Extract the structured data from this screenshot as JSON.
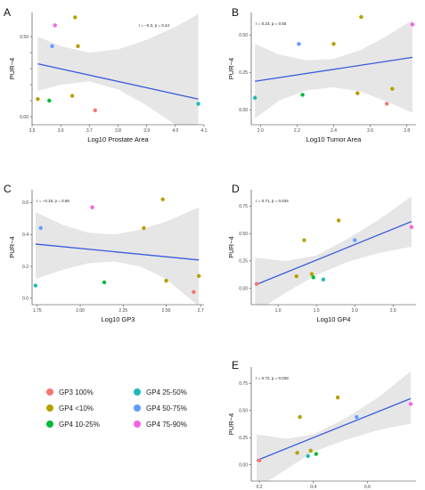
{
  "legend": {
    "items": [
      {
        "label": "GP3 100%",
        "color": "#f8766d"
      },
      {
        "label": "GP4 25-50%",
        "color": "#1fb9b9"
      },
      {
        "label": "GP4 <10%",
        "color": "#b79f00"
      },
      {
        "label": "GP4 50-75%",
        "color": "#619cff"
      },
      {
        "label": "GP4 10-25%",
        "color": "#00ba38"
      },
      {
        "label": "GP4 75-90%",
        "color": "#f564e3"
      }
    ]
  },
  "chart_data": [
    {
      "panel": "A",
      "type": "scatter",
      "xlabel": "Log10 Prostate Area",
      "ylabel": "PUR−4",
      "annotation": "r = −0.3, p = 0.44",
      "xlim": [
        3.5,
        4.1
      ],
      "ylim": [
        -0.05,
        0.65
      ],
      "xticks": [
        3.5,
        3.6,
        3.7,
        3.8,
        3.9,
        4.0,
        4.1
      ],
      "xtick_labels": [
        "3.5",
        "3.6",
        "3.7",
        "3.8",
        "3.9",
        "4.0",
        "4.1"
      ],
      "yticks": [
        0.0,
        0.1,
        0.2,
        0.3,
        0.4,
        0.5
      ],
      "ytick_labels": [
        "0.00",
        "",
        "",
        "",
        "",
        "0.50"
      ],
      "fit": {
        "x": [
          3.52,
          4.08
        ],
        "y": [
          0.33,
          0.11
        ]
      },
      "band_upper": [
        {
          "x": 3.52,
          "y": 0.5
        },
        {
          "x": 3.6,
          "y": 0.44
        },
        {
          "x": 3.7,
          "y": 0.4
        },
        {
          "x": 3.8,
          "y": 0.42
        },
        {
          "x": 3.9,
          "y": 0.48
        },
        {
          "x": 4.0,
          "y": 0.56
        },
        {
          "x": 4.08,
          "y": 0.64
        }
      ],
      "band_lower": [
        {
          "x": 3.52,
          "y": 0.16
        },
        {
          "x": 3.6,
          "y": 0.2
        },
        {
          "x": 3.7,
          "y": 0.22
        },
        {
          "x": 3.8,
          "y": 0.17
        },
        {
          "x": 3.9,
          "y": 0.07
        },
        {
          "x": 4.0,
          "y": -0.05
        },
        {
          "x": 4.08,
          "y": -0.14
        }
      ],
      "points": [
        {
          "x": 3.52,
          "y": 0.11,
          "color": "#b79f00"
        },
        {
          "x": 3.56,
          "y": 0.1,
          "color": "#00ba38"
        },
        {
          "x": 3.57,
          "y": 0.44,
          "color": "#619cff"
        },
        {
          "x": 3.58,
          "y": 0.57,
          "color": "#f564e3"
        },
        {
          "x": 3.64,
          "y": 0.13,
          "color": "#b79f00"
        },
        {
          "x": 3.65,
          "y": 0.62,
          "color": "#b79f00"
        },
        {
          "x": 3.66,
          "y": 0.44,
          "color": "#b79f00"
        },
        {
          "x": 3.72,
          "y": 0.04,
          "color": "#f8766d"
        },
        {
          "x": 4.08,
          "y": 0.08,
          "color": "#1fb9b9"
        }
      ]
    },
    {
      "panel": "B",
      "type": "scatter",
      "xlabel": "Log10 Tumor Area",
      "ylabel": "PUR−4",
      "annotation": "r = 0.23, p = 0.55",
      "xlim": [
        1.95,
        2.85
      ],
      "ylim": [
        -0.1,
        0.65
      ],
      "xticks": [
        2.0,
        2.2,
        2.4,
        2.6,
        2.8
      ],
      "xtick_labels": [
        "2.0",
        "2.2",
        "2.4",
        "2.6",
        "2.8"
      ],
      "yticks": [
        0.0,
        0.25,
        0.5
      ],
      "ytick_labels": [
        "0.00",
        "0.25",
        "0.50"
      ],
      "fit": {
        "x": [
          1.97,
          2.83
        ],
        "y": [
          0.19,
          0.35
        ]
      },
      "band_upper": [
        {
          "x": 1.97,
          "y": 0.44
        },
        {
          "x": 2.1,
          "y": 0.37
        },
        {
          "x": 2.25,
          "y": 0.33
        },
        {
          "x": 2.4,
          "y": 0.34
        },
        {
          "x": 2.55,
          "y": 0.4
        },
        {
          "x": 2.7,
          "y": 0.5
        },
        {
          "x": 2.83,
          "y": 0.6
        }
      ],
      "band_lower": [
        {
          "x": 1.97,
          "y": -0.06
        },
        {
          "x": 2.1,
          "y": 0.06
        },
        {
          "x": 2.25,
          "y": 0.13
        },
        {
          "x": 2.4,
          "y": 0.15
        },
        {
          "x": 2.55,
          "y": 0.12
        },
        {
          "x": 2.7,
          "y": 0.05
        },
        {
          "x": 2.83,
          "y": -0.02
        }
      ],
      "points": [
        {
          "x": 1.97,
          "y": 0.08,
          "color": "#1fb9b9"
        },
        {
          "x": 2.21,
          "y": 0.44,
          "color": "#619cff"
        },
        {
          "x": 2.23,
          "y": 0.1,
          "color": "#00ba38"
        },
        {
          "x": 2.4,
          "y": 0.44,
          "color": "#b79f00"
        },
        {
          "x": 2.53,
          "y": 0.11,
          "color": "#b79f00"
        },
        {
          "x": 2.55,
          "y": 0.62,
          "color": "#b79f00"
        },
        {
          "x": 2.69,
          "y": 0.04,
          "color": "#f8766d"
        },
        {
          "x": 2.72,
          "y": 0.14,
          "color": "#b79f00"
        },
        {
          "x": 2.83,
          "y": 0.57,
          "color": "#f564e3"
        }
      ]
    },
    {
      "panel": "C",
      "type": "scatter",
      "xlabel": "Log10 GP3",
      "ylabel": "PUR−4",
      "annotation": "r = −0.18, p = 0.65",
      "xlim": [
        1.72,
        2.72
      ],
      "ylim": [
        -0.04,
        0.68
      ],
      "xticks": [
        1.75,
        2.0,
        2.25,
        2.5,
        2.7
      ],
      "xtick_labels": [
        "1.75",
        "2.00",
        "2.25",
        "2.50",
        "2.7"
      ],
      "yticks": [
        0.0,
        0.2,
        0.4,
        0.6
      ],
      "ytick_labels": [
        "0.0",
        "0.2",
        "0.4",
        "0.6"
      ],
      "fit": {
        "x": [
          1.74,
          2.69
        ],
        "y": [
          0.34,
          0.24
        ]
      },
      "band_upper": [
        {
          "x": 1.74,
          "y": 0.54
        },
        {
          "x": 1.9,
          "y": 0.46
        },
        {
          "x": 2.05,
          "y": 0.41
        },
        {
          "x": 2.2,
          "y": 0.4
        },
        {
          "x": 2.35,
          "y": 0.43
        },
        {
          "x": 2.5,
          "y": 0.48
        },
        {
          "x": 2.69,
          "y": 0.57
        }
      ],
      "band_lower": [
        {
          "x": 1.74,
          "y": 0.12
        },
        {
          "x": 1.9,
          "y": 0.18
        },
        {
          "x": 2.05,
          "y": 0.22
        },
        {
          "x": 2.2,
          "y": 0.23
        },
        {
          "x": 2.35,
          "y": 0.2
        },
        {
          "x": 2.5,
          "y": 0.12
        },
        {
          "x": 2.69,
          "y": -0.05
        }
      ],
      "points": [
        {
          "x": 1.74,
          "y": 0.08,
          "color": "#1fb9b9"
        },
        {
          "x": 1.77,
          "y": 0.44,
          "color": "#619cff"
        },
        {
          "x": 2.07,
          "y": 0.57,
          "color": "#f564e3"
        },
        {
          "x": 2.14,
          "y": 0.1,
          "color": "#00ba38"
        },
        {
          "x": 2.37,
          "y": 0.44,
          "color": "#b79f00"
        },
        {
          "x": 2.48,
          "y": 0.62,
          "color": "#b79f00"
        },
        {
          "x": 2.5,
          "y": 0.11,
          "color": "#b79f00"
        },
        {
          "x": 2.66,
          "y": 0.04,
          "color": "#f8766d"
        },
        {
          "x": 2.69,
          "y": 0.14,
          "color": "#b79f00"
        }
      ]
    },
    {
      "panel": "D",
      "type": "scatter",
      "xlabel": "Log10 GP4",
      "ylabel": "PUR−4",
      "annotation": "r = 0.71, p = 0.034",
      "xlim": [
        0.65,
        2.8
      ],
      "ylim": [
        -0.15,
        0.9
      ],
      "xticks": [
        1.0,
        1.5,
        2.0,
        2.5
      ],
      "xtick_labels": [
        "1.0",
        "1.5",
        "2.0",
        "2.5"
      ],
      "yticks": [
        0.0,
        0.25,
        0.5,
        0.75
      ],
      "ytick_labels": [
        "0.00",
        "0.25",
        "0.50",
        "0.75"
      ],
      "fit": {
        "x": [
          0.7,
          2.74
        ],
        "y": [
          0.03,
          0.61
        ]
      },
      "band_upper": [
        {
          "x": 0.7,
          "y": 0.28
        },
        {
          "x": 1.1,
          "y": 0.25
        },
        {
          "x": 1.5,
          "y": 0.3
        },
        {
          "x": 1.9,
          "y": 0.45
        },
        {
          "x": 2.3,
          "y": 0.62
        },
        {
          "x": 2.74,
          "y": 0.84
        }
      ],
      "band_lower": [
        {
          "x": 0.7,
          "y": -0.22
        },
        {
          "x": 1.1,
          "y": -0.04
        },
        {
          "x": 1.5,
          "y": 0.12
        },
        {
          "x": 1.9,
          "y": 0.24
        },
        {
          "x": 2.3,
          "y": 0.32
        },
        {
          "x": 2.74,
          "y": 0.38
        }
      ],
      "points": [
        {
          "x": 0.72,
          "y": 0.04,
          "color": "#f8766d"
        },
        {
          "x": 1.24,
          "y": 0.11,
          "color": "#b79f00"
        },
        {
          "x": 1.34,
          "y": 0.44,
          "color": "#b79f00"
        },
        {
          "x": 1.44,
          "y": 0.13,
          "color": "#b79f00"
        },
        {
          "x": 1.46,
          "y": 0.1,
          "color": "#00ba38"
        },
        {
          "x": 1.59,
          "y": 0.08,
          "color": "#1fb9b9"
        },
        {
          "x": 1.79,
          "y": 0.62,
          "color": "#b79f00"
        },
        {
          "x": 2.0,
          "y": 0.44,
          "color": "#619cff"
        },
        {
          "x": 2.74,
          "y": 0.56,
          "color": "#f564e3"
        }
      ]
    },
    {
      "panel": "E",
      "type": "scatter",
      "xlabel": "Log10 GP4/Prostate area",
      "ylabel": "PUR−4",
      "annotation": "r = 0.72, p = 0.028",
      "xlim": [
        0.17,
        0.78
      ],
      "ylim": [
        -0.15,
        0.9
      ],
      "xticks": [
        0.2,
        0.4,
        0.6
      ],
      "xtick_labels": [
        "0.2",
        "0.4",
        "0.6"
      ],
      "yticks": [
        0.0,
        0.25,
        0.5,
        0.75
      ],
      "ytick_labels": [
        "0.00",
        "0.25",
        "0.50",
        "0.75"
      ],
      "fit": {
        "x": [
          0.19,
          0.76
        ],
        "y": [
          0.04,
          0.61
        ]
      },
      "band_upper": [
        {
          "x": 0.19,
          "y": 0.28
        },
        {
          "x": 0.3,
          "y": 0.24
        },
        {
          "x": 0.4,
          "y": 0.28
        },
        {
          "x": 0.52,
          "y": 0.43
        },
        {
          "x": 0.64,
          "y": 0.62
        },
        {
          "x": 0.76,
          "y": 0.86
        }
      ],
      "band_lower": [
        {
          "x": 0.19,
          "y": -0.22
        },
        {
          "x": 0.3,
          "y": -0.04
        },
        {
          "x": 0.4,
          "y": 0.12
        },
        {
          "x": 0.52,
          "y": 0.23
        },
        {
          "x": 0.64,
          "y": 0.32
        },
        {
          "x": 0.76,
          "y": 0.38
        }
      ],
      "points": [
        {
          "x": 0.2,
          "y": 0.04,
          "color": "#f8766d"
        },
        {
          "x": 0.34,
          "y": 0.11,
          "color": "#b79f00"
        },
        {
          "x": 0.35,
          "y": 0.44,
          "color": "#b79f00"
        },
        {
          "x": 0.38,
          "y": 0.08,
          "color": "#1fb9b9"
        },
        {
          "x": 0.39,
          "y": 0.13,
          "color": "#b79f00"
        },
        {
          "x": 0.41,
          "y": 0.1,
          "color": "#00ba38"
        },
        {
          "x": 0.49,
          "y": 0.62,
          "color": "#b79f00"
        },
        {
          "x": 0.56,
          "y": 0.44,
          "color": "#619cff"
        },
        {
          "x": 0.76,
          "y": 0.56,
          "color": "#f564e3"
        }
      ]
    }
  ]
}
